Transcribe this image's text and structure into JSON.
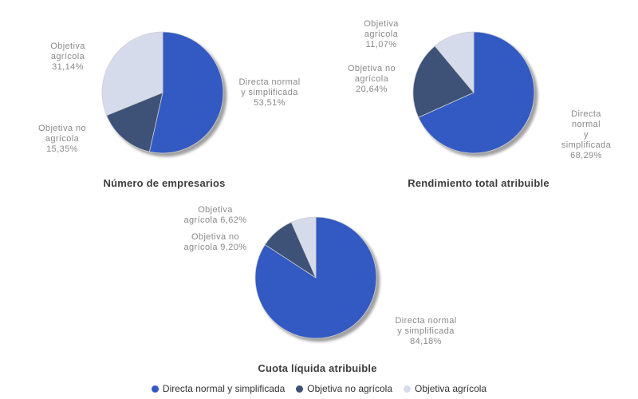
{
  "legend": {
    "items": [
      {
        "label": "Directa normal y simplificada",
        "color": "#3359C2"
      },
      {
        "label": "Objetiva no agrícola",
        "color": "#3E5177"
      },
      {
        "label": "Objetiva agrícola",
        "color": "#D6DBEC"
      }
    ]
  },
  "chart_data": [
    {
      "type": "pie",
      "title": "Número de empresarios",
      "categories": [
        "Directa normal y simplificada",
        "Objetiva no agrícola",
        "Objetiva agrícola"
      ],
      "values": [
        53.51,
        15.35,
        31.14
      ],
      "start_angle": "12-oclock, clockwise",
      "legend_position": "bottom-shared",
      "callouts": [
        {
          "text": "Directa normal\ny simplificada\n53,51%"
        },
        {
          "text": "Objetiva no\nagrícola\n15,35%"
        },
        {
          "text": "Objetiva\nagrícola\n31,14%"
        }
      ]
    },
    {
      "type": "pie",
      "title": "Rendimiento total atribuible",
      "categories": [
        "Directa normal y simplificada",
        "Objetiva no agrícola",
        "Objetiva agrícola"
      ],
      "values": [
        68.29,
        20.64,
        11.07
      ],
      "start_angle": "12-oclock, clockwise",
      "legend_position": "bottom-shared",
      "callouts": [
        {
          "text": "Directa normal\ny simplificada\n68,29%"
        },
        {
          "text": "Objetiva no\nagrícola\n20,64%"
        },
        {
          "text": "Objetiva\nagrícola\n11,07%"
        }
      ]
    },
    {
      "type": "pie",
      "title": "Cuota líquida atribuible",
      "categories": [
        "Directa normal y simplificada",
        "Objetiva no agrícola",
        "Objetiva agrícola"
      ],
      "values": [
        84.18,
        9.2,
        6.62
      ],
      "start_angle": "12-oclock, clockwise",
      "legend_position": "bottom-shared",
      "callouts": [
        {
          "text": "Directa normal\ny simplificada\n84,18%"
        },
        {
          "text": "Objetiva no\nagrícola 9,20%"
        },
        {
          "text": "Objetiva\nagrícola 6,62%"
        }
      ]
    }
  ]
}
